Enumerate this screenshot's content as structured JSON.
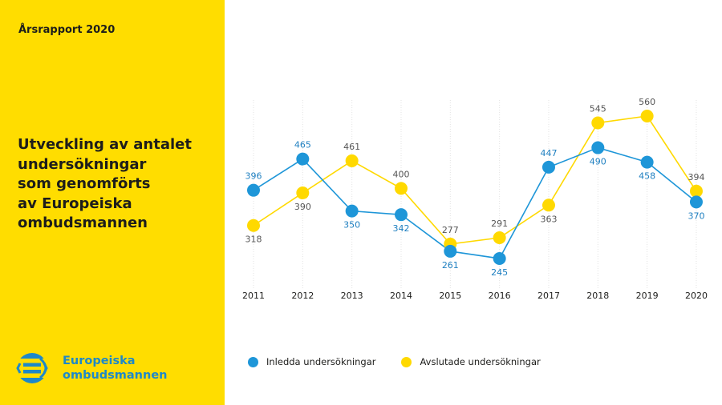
{
  "sidebar": {
    "report_label": "Årsrapport 2020",
    "title": "Utveckling av antalet\nundersökningar\nsom genomförts\nav Europeiska\nombudsmannen",
    "logo_text": "Europeiska\nombudsmannen",
    "logo_icon": "european-ombudsman-logo-icon",
    "background_color": "#FFDD00",
    "logo_color": "#1E88C8"
  },
  "chart_data": {
    "type": "line",
    "title": "Utveckling av antalet undersökningar som genomförts av Europeiska ombudsmannen",
    "xlabel": "",
    "ylabel": "",
    "x": [
      "2011",
      "2012",
      "2013",
      "2014",
      "2015",
      "2016",
      "2017",
      "2018",
      "2019",
      "2020"
    ],
    "series": [
      {
        "name": "Inledda undersökningar",
        "color": "#1E96D8",
        "label_color": "#1E7FC0",
        "values": [
          396,
          465,
          350,
          342,
          261,
          245,
          447,
          490,
          458,
          370
        ]
      },
      {
        "name": "Avslutade undersökningar",
        "color": "#FFD900",
        "label_color": "#555555",
        "values": [
          318,
          390,
          461,
          400,
          277,
          291,
          363,
          545,
          560,
          394
        ]
      }
    ],
    "label_positions": {
      "Inledda undersökningar": [
        "above",
        "above",
        "below",
        "below",
        "below",
        "below",
        "above",
        "below",
        "below",
        "below"
      ],
      "Avslutade undersökningar": [
        "below",
        "below",
        "above",
        "above",
        "above",
        "above",
        "below",
        "above",
        "above",
        "above"
      ]
    },
    "grid": "vertical dotted",
    "legend": "bottom",
    "y_axis_visible": false
  }
}
